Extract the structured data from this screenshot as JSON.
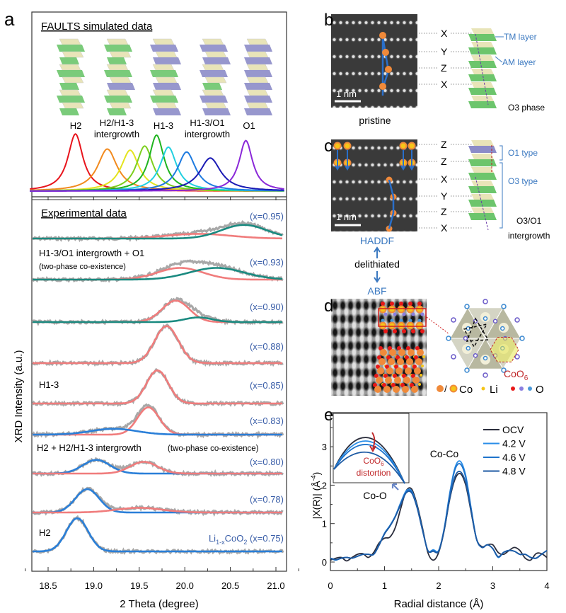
{
  "panel_labels": {
    "a": "a",
    "b": "b",
    "c": "c",
    "d": "d",
    "e": "e"
  },
  "chart_data": [
    {
      "id": "faults",
      "type": "line",
      "title": "FAULTS simulated data",
      "phase_labels": [
        {
          "line1": "H2",
          "line2": ""
        },
        {
          "line1": "H2/H1-3",
          "line2": "intergrowth"
        },
        {
          "line1": "H1-3",
          "line2": ""
        },
        {
          "line1": "H1-3/O1",
          "line2": "intergrowth"
        },
        {
          "line1": "O1",
          "line2": ""
        }
      ],
      "xlim": [
        18.3,
        21.1
      ],
      "series": [
        {
          "color": "#e8141c",
          "center": 18.8,
          "height": 0.95,
          "width": 0.1
        },
        {
          "color": "#f28a1e",
          "center": 19.15,
          "height": 0.7,
          "width": 0.13
        },
        {
          "color": "#e4e41e",
          "center": 19.4,
          "height": 0.68,
          "width": 0.12
        },
        {
          "color": "#7ccf1e",
          "center": 19.56,
          "height": 0.75,
          "width": 0.11
        },
        {
          "color": "#1fb41f",
          "center": 19.69,
          "height": 0.93,
          "width": 0.1
        },
        {
          "color": "#22d0e0",
          "center": 19.82,
          "height": 0.73,
          "width": 0.11
        },
        {
          "color": "#1e7be0",
          "center": 20.02,
          "height": 0.65,
          "width": 0.12
        },
        {
          "color": "#1a1ab4",
          "center": 20.28,
          "height": 0.55,
          "width": 0.14
        },
        {
          "color": "#8a28d8",
          "center": 20.67,
          "height": 0.84,
          "width": 0.09
        }
      ]
    },
    {
      "id": "xrd",
      "type": "line",
      "title": "Experimental data",
      "xlabel": "2 Theta (degree)",
      "ylabel": "XRD Intensity (a.u.)",
      "xlim": [
        18.3,
        21.1
      ],
      "xticks": [
        "18.5",
        "19.0",
        "19.5",
        "20.0",
        "20.5",
        "21.0"
      ],
      "rows": [
        {
          "label": "(x=0.95)",
          "components": [
            {
              "color": "#f07c7c",
              "center": 20.15,
              "height": 0.12,
              "sigma": 0.35
            },
            {
              "color": "#1a8a80",
              "center": 20.65,
              "height": 0.35,
              "sigma": 0.25
            }
          ]
        },
        {
          "label": "(x=0.93)",
          "components": [
            {
              "color": "#f07c7c",
              "center": 19.95,
              "height": 0.3,
              "sigma": 0.25
            },
            {
              "color": "#1a8a80",
              "center": 20.35,
              "height": 0.3,
              "sigma": 0.3
            }
          ]
        },
        {
          "label": "(x=0.90)",
          "components": [
            {
              "color": "#f07c7c",
              "center": 19.9,
              "height": 0.55,
              "sigma": 0.15
            },
            {
              "color": "#1a8a80",
              "center": 20.15,
              "height": 0.12,
              "sigma": 0.15
            }
          ]
        },
        {
          "label": "(x=0.88)",
          "components": [
            {
              "color": "#f07c7c",
              "center": 19.8,
              "height": 0.95,
              "sigma": 0.13
            }
          ]
        },
        {
          "label": "(x=0.85)",
          "components": [
            {
              "color": "#f07c7c",
              "center": 19.7,
              "height": 0.85,
              "sigma": 0.12
            }
          ]
        },
        {
          "label": "(x=0.83)",
          "components": [
            {
              "color": "#f07c7c",
              "center": 19.6,
              "height": 0.7,
              "sigma": 0.12
            },
            {
              "color": "#2a7fd8",
              "center": 19.22,
              "height": 0.15,
              "sigma": 0.25
            }
          ]
        },
        {
          "label": "(x=0.80)",
          "components": [
            {
              "color": "#2a7fd8",
              "center": 19.03,
              "height": 0.35,
              "sigma": 0.15
            },
            {
              "color": "#f07c7c",
              "center": 19.55,
              "height": 0.3,
              "sigma": 0.15
            }
          ]
        },
        {
          "label": "(x=0.78)",
          "components": [
            {
              "color": "#2a7fd8",
              "center": 18.93,
              "height": 0.6,
              "sigma": 0.13
            },
            {
              "color": "#f07c7c",
              "center": 19.5,
              "height": 0.12,
              "sigma": 0.25
            }
          ]
        },
        {
          "label": "(x=0.75)",
          "label_prefix": "Li",
          "label_sub1": "1-x",
          "label_mid": "CoO",
          "label_sub2": "2",
          "components": [
            {
              "color": "#2a7fd8",
              "center": 18.82,
              "height": 0.85,
              "sigma": 0.12
            }
          ]
        }
      ],
      "annotations": {
        "h13_o1": "H1-3/O1 intergrowth + O1",
        "two_phase_1": "(two-phase co-existence)",
        "h13": "H1-3",
        "h2_mix": "H2 + H2/H1-3 intergrowth",
        "two_phase_2": "(two-phase co-existence)",
        "h2": "H2"
      }
    },
    {
      "id": "exafs",
      "type": "line",
      "xlabel": "Radial distance (Å)",
      "ylabel_main": "|X(R)| (Å",
      "ylabel_sup": "-4",
      "ylabel_end": ")",
      "xlim": [
        0,
        4
      ],
      "ylim": [
        -0.25,
        3.8
      ],
      "xticks": [
        "0",
        "1",
        "2",
        "3",
        "4"
      ],
      "yticks": [
        "0",
        "1",
        "2",
        "3"
      ],
      "x": [
        0,
        0.1,
        0.2,
        0.3,
        0.4,
        0.5,
        0.6,
        0.7,
        0.8,
        0.9,
        1.0,
        1.1,
        1.2,
        1.3,
        1.4,
        1.5,
        1.6,
        1.7,
        1.8,
        1.9,
        2.0,
        2.1,
        2.2,
        2.3,
        2.4,
        2.5,
        2.6,
        2.7,
        2.8,
        2.9,
        3.0,
        3.1,
        3.2,
        3.3,
        3.4,
        3.5,
        3.6,
        3.7,
        3.8,
        3.9,
        4.0
      ],
      "series": [
        {
          "name": "OCV",
          "color": "#2b2d3c",
          "values": [
            0.05,
            0.1,
            0.12,
            0.03,
            0.12,
            0.2,
            0.22,
            0.12,
            0.25,
            0.5,
            0.62,
            0.65,
            0.9,
            1.4,
            1.85,
            1.9,
            1.5,
            0.9,
            0.25,
            0.05,
            0.25,
            0.8,
            1.6,
            2.15,
            2.3,
            2.0,
            1.3,
            0.6,
            0.4,
            0.45,
            0.45,
            0.25,
            0.2,
            0.3,
            0.38,
            0.3,
            0.1,
            0.05,
            0.22,
            0.22,
            0.12
          ]
        },
        {
          "name": "4.2 V",
          "color": "#2a8ee8",
          "values": [
            0.1,
            0.05,
            0.1,
            0.12,
            0.1,
            0.15,
            0.2,
            0.2,
            0.2,
            0.45,
            0.75,
            0.95,
            1.2,
            1.55,
            1.85,
            1.85,
            1.45,
            0.85,
            0.3,
            0.32,
            0.3,
            0.85,
            1.75,
            2.45,
            2.62,
            2.25,
            1.4,
            0.6,
            0.38,
            0.45,
            0.35,
            0.12,
            0.25,
            0.3,
            0.28,
            0.2,
            0.2,
            0.12,
            0.1,
            0.2,
            0.3
          ]
        },
        {
          "name": "4.6 V",
          "color": "#1f74cc",
          "values": [
            0.1,
            0.06,
            0.1,
            0.12,
            0.1,
            0.15,
            0.2,
            0.2,
            0.2,
            0.45,
            0.74,
            0.94,
            1.19,
            1.53,
            1.83,
            1.83,
            1.44,
            0.85,
            0.3,
            0.3,
            0.29,
            0.84,
            1.72,
            2.4,
            2.55,
            2.2,
            1.38,
            0.6,
            0.38,
            0.45,
            0.35,
            0.13,
            0.25,
            0.3,
            0.28,
            0.2,
            0.2,
            0.12,
            0.1,
            0.2,
            0.3
          ]
        },
        {
          "name": "4.8 V",
          "color": "#1d5aa3",
          "values": [
            0.1,
            0.06,
            0.1,
            0.12,
            0.1,
            0.15,
            0.2,
            0.2,
            0.2,
            0.44,
            0.73,
            0.93,
            1.18,
            1.5,
            1.8,
            1.8,
            1.42,
            0.84,
            0.3,
            0.28,
            0.28,
            0.82,
            1.62,
            2.22,
            2.35,
            2.06,
            1.33,
            0.6,
            0.38,
            0.45,
            0.35,
            0.14,
            0.25,
            0.3,
            0.28,
            0.2,
            0.2,
            0.12,
            0.1,
            0.2,
            0.3
          ]
        }
      ],
      "legend": [
        "OCV",
        "4.2 V",
        "4.6 V",
        "4.8 V"
      ],
      "legend_position": "top-right",
      "annotations": {
        "co_co": "Co-Co",
        "co_o": "Co-O",
        "inset_main": "CoO",
        "inset_sub": "6",
        "inset_line2": "distortion"
      }
    }
  ],
  "panel_b": {
    "scale_bar": "1 nm",
    "caption": "pristine",
    "stacking": [
      "X",
      "Y",
      "Z",
      "X"
    ],
    "tm_layer": "TM layer",
    "am_layer": "AM layer",
    "phase": "O3 phase"
  },
  "panel_c": {
    "scale_bar": "1 nm",
    "stacking": [
      "Z",
      "Z",
      "X",
      "Y",
      "Z",
      "X"
    ],
    "o1_type": "O1 type",
    "o3_type": "O3 type",
    "phase_line1": "O3/O1",
    "phase_line2": "intergrowth",
    "haadf": "HADDF",
    "delithiated": "delithiated",
    "abf": "ABF"
  },
  "panel_d": {
    "coo6_main": "CoO",
    "coo6_sub": "6",
    "legend_co": "Co",
    "legend_li": "Li",
    "legend_o": "O",
    "slash": "/"
  },
  "colors": {
    "accent_blue": "#3a78c0",
    "red": "#c0282a",
    "orange": "#f08a3a"
  }
}
